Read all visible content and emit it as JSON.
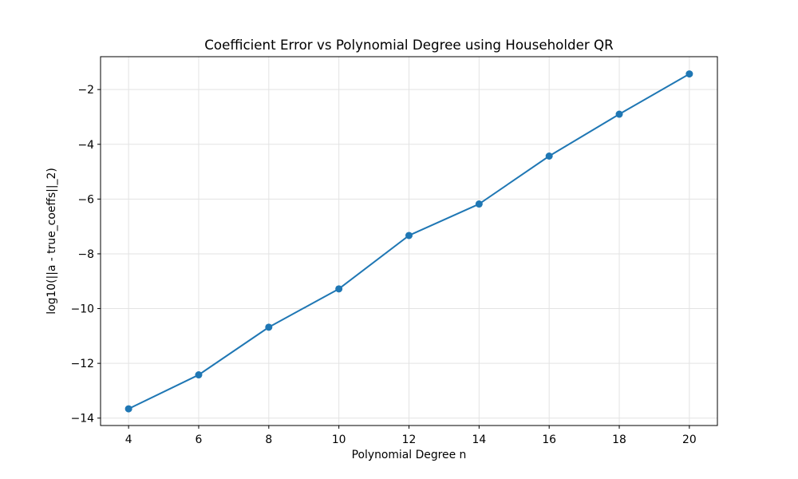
{
  "chart_data": {
    "type": "line",
    "title": "Coefficient Error vs Polynomial Degree using Householder QR",
    "xlabel": "Polynomial Degree n",
    "ylabel": "log10(||a - true_coeffs||_2)",
    "series": [
      {
        "name": "coefficient_error",
        "x": [
          4,
          6,
          8,
          10,
          12,
          14,
          16,
          18,
          20
        ],
        "y": [
          -13.66,
          -12.42,
          -10.68,
          -9.28,
          -7.33,
          -6.18,
          -4.43,
          -2.9,
          -1.43
        ],
        "color": "#1f77b4",
        "marker": "circle",
        "marker_diameter": 9,
        "line_width": 2
      }
    ],
    "xlim": [
      3.2,
      20.8
    ],
    "ylim": [
      -14.27,
      -0.8
    ],
    "xticks": [
      4,
      6,
      8,
      10,
      12,
      14,
      16,
      18,
      20
    ],
    "yticks": [
      -14,
      -12,
      -10,
      -8,
      -6,
      -4,
      -2
    ],
    "xtick_labels": [
      "4",
      "6",
      "8",
      "10",
      "12",
      "14",
      "16",
      "18",
      "20"
    ],
    "ytick_labels": [
      "−14",
      "−12",
      "−10",
      "−8",
      "−6",
      "−4",
      "−2"
    ],
    "grid": true,
    "grid_color": "#e3e3e3",
    "spine_color": "#000000",
    "background": "#ffffff",
    "legend_position": "none"
  }
}
